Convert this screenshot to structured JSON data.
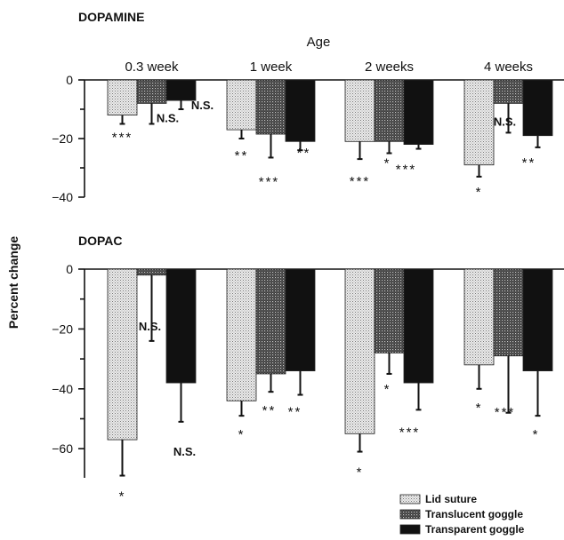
{
  "colors": {
    "ink": "#111111",
    "background": "#ffffff"
  },
  "figure": {
    "x_axis_title": "Age",
    "y_axis_title": "Percent change",
    "series": [
      {
        "name": "Lid suture",
        "pattern": "light-dots"
      },
      {
        "name": "Translucent goggle",
        "pattern": "dark-dots"
      },
      {
        "name": "Transparent goggle",
        "pattern": "solid-black"
      }
    ]
  },
  "chart_data": [
    {
      "type": "bar",
      "title": "DOPAMINE",
      "xlabel": "Age",
      "ylabel": "Percent change",
      "categories": [
        "0.3 week",
        "1 week",
        "2 weeks",
        "4 weeks"
      ],
      "ylim": [
        -40,
        0
      ],
      "yticks": [
        0,
        -20,
        -40
      ],
      "yticks_minor": [
        -10,
        -30
      ],
      "series": [
        {
          "name": "Lid suture",
          "values": [
            -12,
            -17,
            -21,
            -29
          ],
          "error": [
            3,
            3,
            6,
            4
          ],
          "significance": [
            "***",
            "**",
            "***",
            "*"
          ]
        },
        {
          "name": "Translucent goggle",
          "values": [
            -8,
            -18.5,
            -21,
            -8
          ],
          "error": [
            7,
            8,
            4,
            10
          ],
          "significance": [
            "N.S.",
            "***",
            "*",
            "N.S."
          ]
        },
        {
          "name": "Transparent goggle",
          "values": [
            -7,
            -21,
            -22,
            -19
          ],
          "error": [
            3,
            3,
            1.5,
            4
          ],
          "significance": [
            "N.S.",
            "**",
            "***",
            "**"
          ]
        }
      ]
    },
    {
      "type": "bar",
      "title": "DOPAC",
      "xlabel": "",
      "ylabel": "Percent change",
      "categories": [
        "0.3 week",
        "1 week",
        "2 weeks",
        "4 weeks"
      ],
      "ylim": [
        -70,
        0
      ],
      "yticks": [
        0,
        -20,
        -40,
        -60
      ],
      "yticks_minor": [
        -10,
        -30,
        -50
      ],
      "series": [
        {
          "name": "Lid suture",
          "values": [
            -57,
            -44,
            -55,
            -32
          ],
          "error": [
            12,
            5,
            6,
            8
          ],
          "significance": [
            "*",
            "*",
            "*",
            "*"
          ]
        },
        {
          "name": "Translucent goggle",
          "values": [
            -2,
            -35,
            -28,
            -29
          ],
          "error": [
            22,
            6,
            7,
            19
          ],
          "significance": [
            "N.S.",
            "**",
            "*",
            "***"
          ]
        },
        {
          "name": "Transparent goggle",
          "values": [
            -38,
            -34,
            -38,
            -34
          ],
          "error": [
            13,
            8,
            9,
            15
          ],
          "significance": [
            "N.S.",
            "**",
            "***",
            "*"
          ]
        }
      ]
    }
  ]
}
